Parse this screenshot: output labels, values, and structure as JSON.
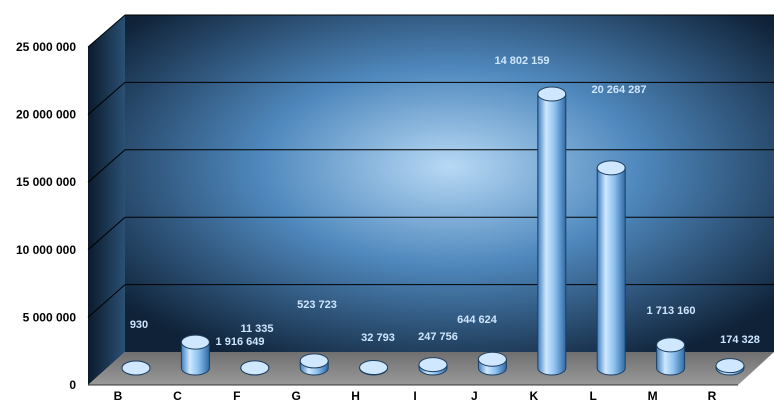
{
  "chart_data": {
    "type": "bar",
    "categories": [
      "B",
      "C",
      "F",
      "G",
      "H",
      "I",
      "J",
      "K",
      "L",
      "M",
      "R"
    ],
    "values": [
      930,
      1916649,
      11335,
      523723,
      32793,
      247756,
      644624,
      20264287,
      14802159,
      1713160,
      174328
    ],
    "value_labels": [
      "930",
      "1 916 649",
      "11 335",
      "523 723",
      "32 793",
      "247 756",
      "644 624",
      "20 264 287",
      "14 802 159",
      "1 713 160",
      "174 328"
    ],
    "ylim": [
      0,
      25000000
    ],
    "yticks": [
      0,
      5000000,
      10000000,
      15000000,
      20000000,
      25000000
    ],
    "ytick_labels": [
      "0",
      "5 000 000",
      "10 000 000",
      "15 000 000",
      "20 000 000",
      "25 000 000"
    ],
    "grid": true,
    "style": "3d-cylinder",
    "colors": {
      "bar_light": "#cfe8ff",
      "bar_mid": "#8fc2f0",
      "bar_dark": "#3f7fbf",
      "wall_center": "#b7d9f5",
      "wall_edge": "#0f2238",
      "floor": "#8f8f8f",
      "label": "#cfe6ff"
    }
  }
}
